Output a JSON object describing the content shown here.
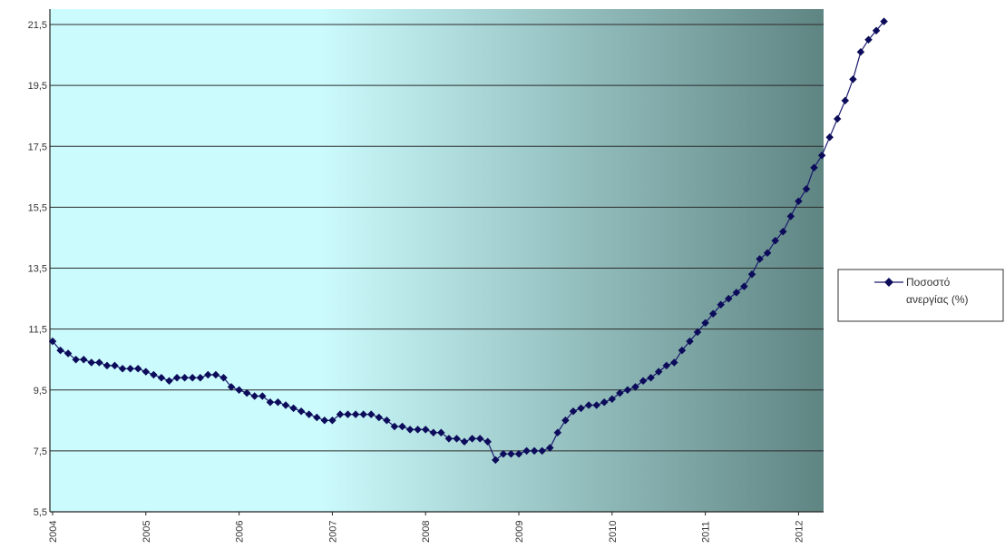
{
  "colors": {
    "line": "#1a1a6e",
    "marker": "#0c0c5a",
    "grid": "#2b2b2b",
    "bg_left": "#ccfbfd",
    "bg_right": "#5f8583"
  },
  "legend": {
    "lines": [
      "Ποσοστό",
      "ανεργίας (%)"
    ]
  },
  "chart_data": {
    "type": "line",
    "ylim": [
      5.5,
      21.5
    ],
    "y_ticks": [
      "5,5",
      "7,5",
      "9,5",
      "11,5",
      "13,5",
      "15,5",
      "17,5",
      "19,5",
      "21,5"
    ],
    "x_ticks": [
      "2004",
      "2005",
      "2006",
      "2007",
      "2008",
      "2009",
      "2010",
      "2011",
      "2012"
    ],
    "grid": true,
    "legend_position": "right",
    "series": [
      {
        "name": "Ποσοστό ανεργίας (%)",
        "values": [
          11.1,
          10.8,
          10.7,
          10.5,
          10.5,
          10.4,
          10.4,
          10.3,
          10.3,
          10.2,
          10.2,
          10.2,
          10.1,
          10.0,
          9.9,
          9.8,
          9.9,
          9.9,
          9.9,
          9.9,
          10.0,
          10.0,
          9.9,
          9.6,
          9.5,
          9.4,
          9.3,
          9.3,
          9.1,
          9.1,
          9.0,
          8.9,
          8.8,
          8.7,
          8.6,
          8.5,
          8.5,
          8.7,
          8.7,
          8.7,
          8.7,
          8.7,
          8.6,
          8.5,
          8.3,
          8.3,
          8.2,
          8.2,
          8.2,
          8.1,
          8.1,
          7.9,
          7.9,
          7.8,
          7.9,
          7.9,
          7.8,
          7.2,
          7.4,
          7.4,
          7.4,
          7.5,
          7.5,
          7.5,
          7.6,
          8.1,
          8.5,
          8.8,
          8.9,
          9.0,
          9.0,
          9.1,
          9.2,
          9.4,
          9.5,
          9.6,
          9.8,
          9.9,
          10.1,
          10.3,
          10.4,
          10.8,
          11.1,
          11.4,
          11.7,
          12.0,
          12.3,
          12.5,
          12.7,
          12.9,
          13.3,
          13.8,
          14.0,
          14.4,
          14.7,
          15.2,
          15.7,
          16.1,
          16.8,
          17.2,
          17.8,
          18.4,
          19.0,
          19.7,
          20.6,
          21.0,
          21.3,
          21.6
        ]
      }
    ]
  }
}
